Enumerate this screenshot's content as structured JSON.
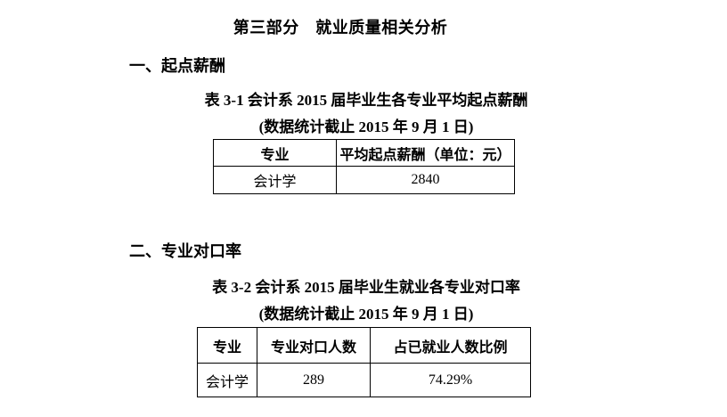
{
  "doc": {
    "title": "第三部分　就业质量相关分析"
  },
  "sections": [
    {
      "heading": "一、起点薪酬",
      "table_caption": "表 3-1 会计系 2015 届毕业生各专业平均起点薪酬",
      "table_note": "(数据统计截止 2015 年 9 月 1 日)",
      "table": {
        "headers": [
          "专业",
          "平均起点薪酬（单位：元）"
        ],
        "rows": [
          [
            "会计学",
            "2840"
          ]
        ]
      }
    },
    {
      "heading": "二、专业对口率",
      "table_caption": "表 3-2 会计系 2015 届毕业生就业各专业对口率",
      "table_note": "(数据统计截止 2015 年 9 月 1 日)",
      "table": {
        "headers": [
          "专业",
          "专业对口人数",
          "占已就业人数比例"
        ],
        "rows": [
          [
            "会计学",
            "289",
            "74.29%"
          ]
        ]
      }
    }
  ]
}
